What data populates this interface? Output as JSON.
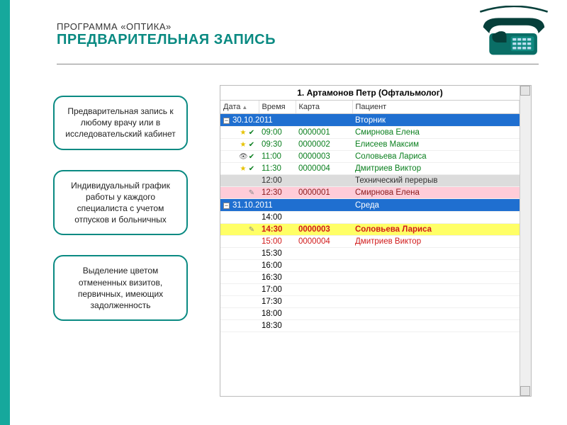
{
  "header": {
    "subtitle": "ПРОГРАММА «ОПТИКА»",
    "title": "ПРЕДВАРИТЕЛЬНАЯ ЗАПИСЬ"
  },
  "colors": {
    "accent": "#0a8a82",
    "strip": "#16a89c",
    "group_bg": "#1f6fd0",
    "row_green_text": "#0a7f1e",
    "row_gray_bg": "#dcdcdc",
    "row_pink_bg": "#ffccd8",
    "row_darkred_text": "#8a1a1a",
    "row_yellow_bg": "#ffff66",
    "row_red_text": "#d11a1a"
  },
  "cards": [
    "Предварительная запись к любому врачу или в исследовательский кабинет",
    "Индивидуальный график работы у каждого специалиста с учетом отпусков и больничных",
    "Выделение цветом отмененных визитов, первичных, имеющих задолженность"
  ],
  "schedule": {
    "caption": "1. Артамонов Петр (Офтальмолог)",
    "columns": [
      "Дата",
      "Время",
      "Карта",
      "Пациент"
    ],
    "groups": [
      {
        "date": "30.10.2011",
        "day": "Вторник",
        "rows": [
          {
            "icons": [
              "star",
              "check"
            ],
            "time": "09:00",
            "card": "0000001",
            "patient": "Смирнова Елена",
            "text_color": "#0a7f1e"
          },
          {
            "icons": [
              "star",
              "check"
            ],
            "time": "09:30",
            "card": "0000002",
            "patient": "Елисеев Максим",
            "text_color": "#0a7f1e"
          },
          {
            "icons": [
              "eye",
              "check"
            ],
            "time": "11:00",
            "card": "0000003",
            "patient": "Соловьева Лариса",
            "text_color": "#0a7f1e"
          },
          {
            "icons": [
              "star",
              "check"
            ],
            "time": "11:30",
            "card": "0000004",
            "patient": "Дмитриев Виктор",
            "text_color": "#0a7f1e"
          },
          {
            "icons": [],
            "time": "12:00",
            "card": "",
            "patient": "Технический перерыв",
            "bg": "#dcdcdc",
            "text_color": "#333"
          },
          {
            "icons": [
              "syringe"
            ],
            "time": "12:30",
            "card": "0000001",
            "patient": "Смирнова Елена",
            "bg": "#ffccd8",
            "text_color": "#8a1a1a"
          }
        ]
      },
      {
        "date": "31.10.2011",
        "day": "Среда",
        "rows": [
          {
            "icons": [],
            "time": "14:00",
            "card": "",
            "patient": ""
          },
          {
            "icons": [
              "syringe"
            ],
            "time": "14:30",
            "card": "0000003",
            "patient": "Соловьева Лариса",
            "bg": "#ffff66",
            "text_color": "#d11a1a",
            "bold": true
          },
          {
            "icons": [],
            "time": "15:00",
            "card": "0000004",
            "patient": "Дмитриев Виктор",
            "text_color": "#d11a1a"
          },
          {
            "icons": [],
            "time": "15:30",
            "card": "",
            "patient": ""
          },
          {
            "icons": [],
            "time": "16:00",
            "card": "",
            "patient": ""
          },
          {
            "icons": [],
            "time": "16:30",
            "card": "",
            "patient": ""
          },
          {
            "icons": [],
            "time": "17:00",
            "card": "",
            "patient": ""
          },
          {
            "icons": [],
            "time": "17:30",
            "card": "",
            "patient": ""
          },
          {
            "icons": [],
            "time": "18:00",
            "card": "",
            "patient": ""
          },
          {
            "icons": [],
            "time": "18:30",
            "card": "",
            "patient": ""
          }
        ]
      }
    ]
  }
}
